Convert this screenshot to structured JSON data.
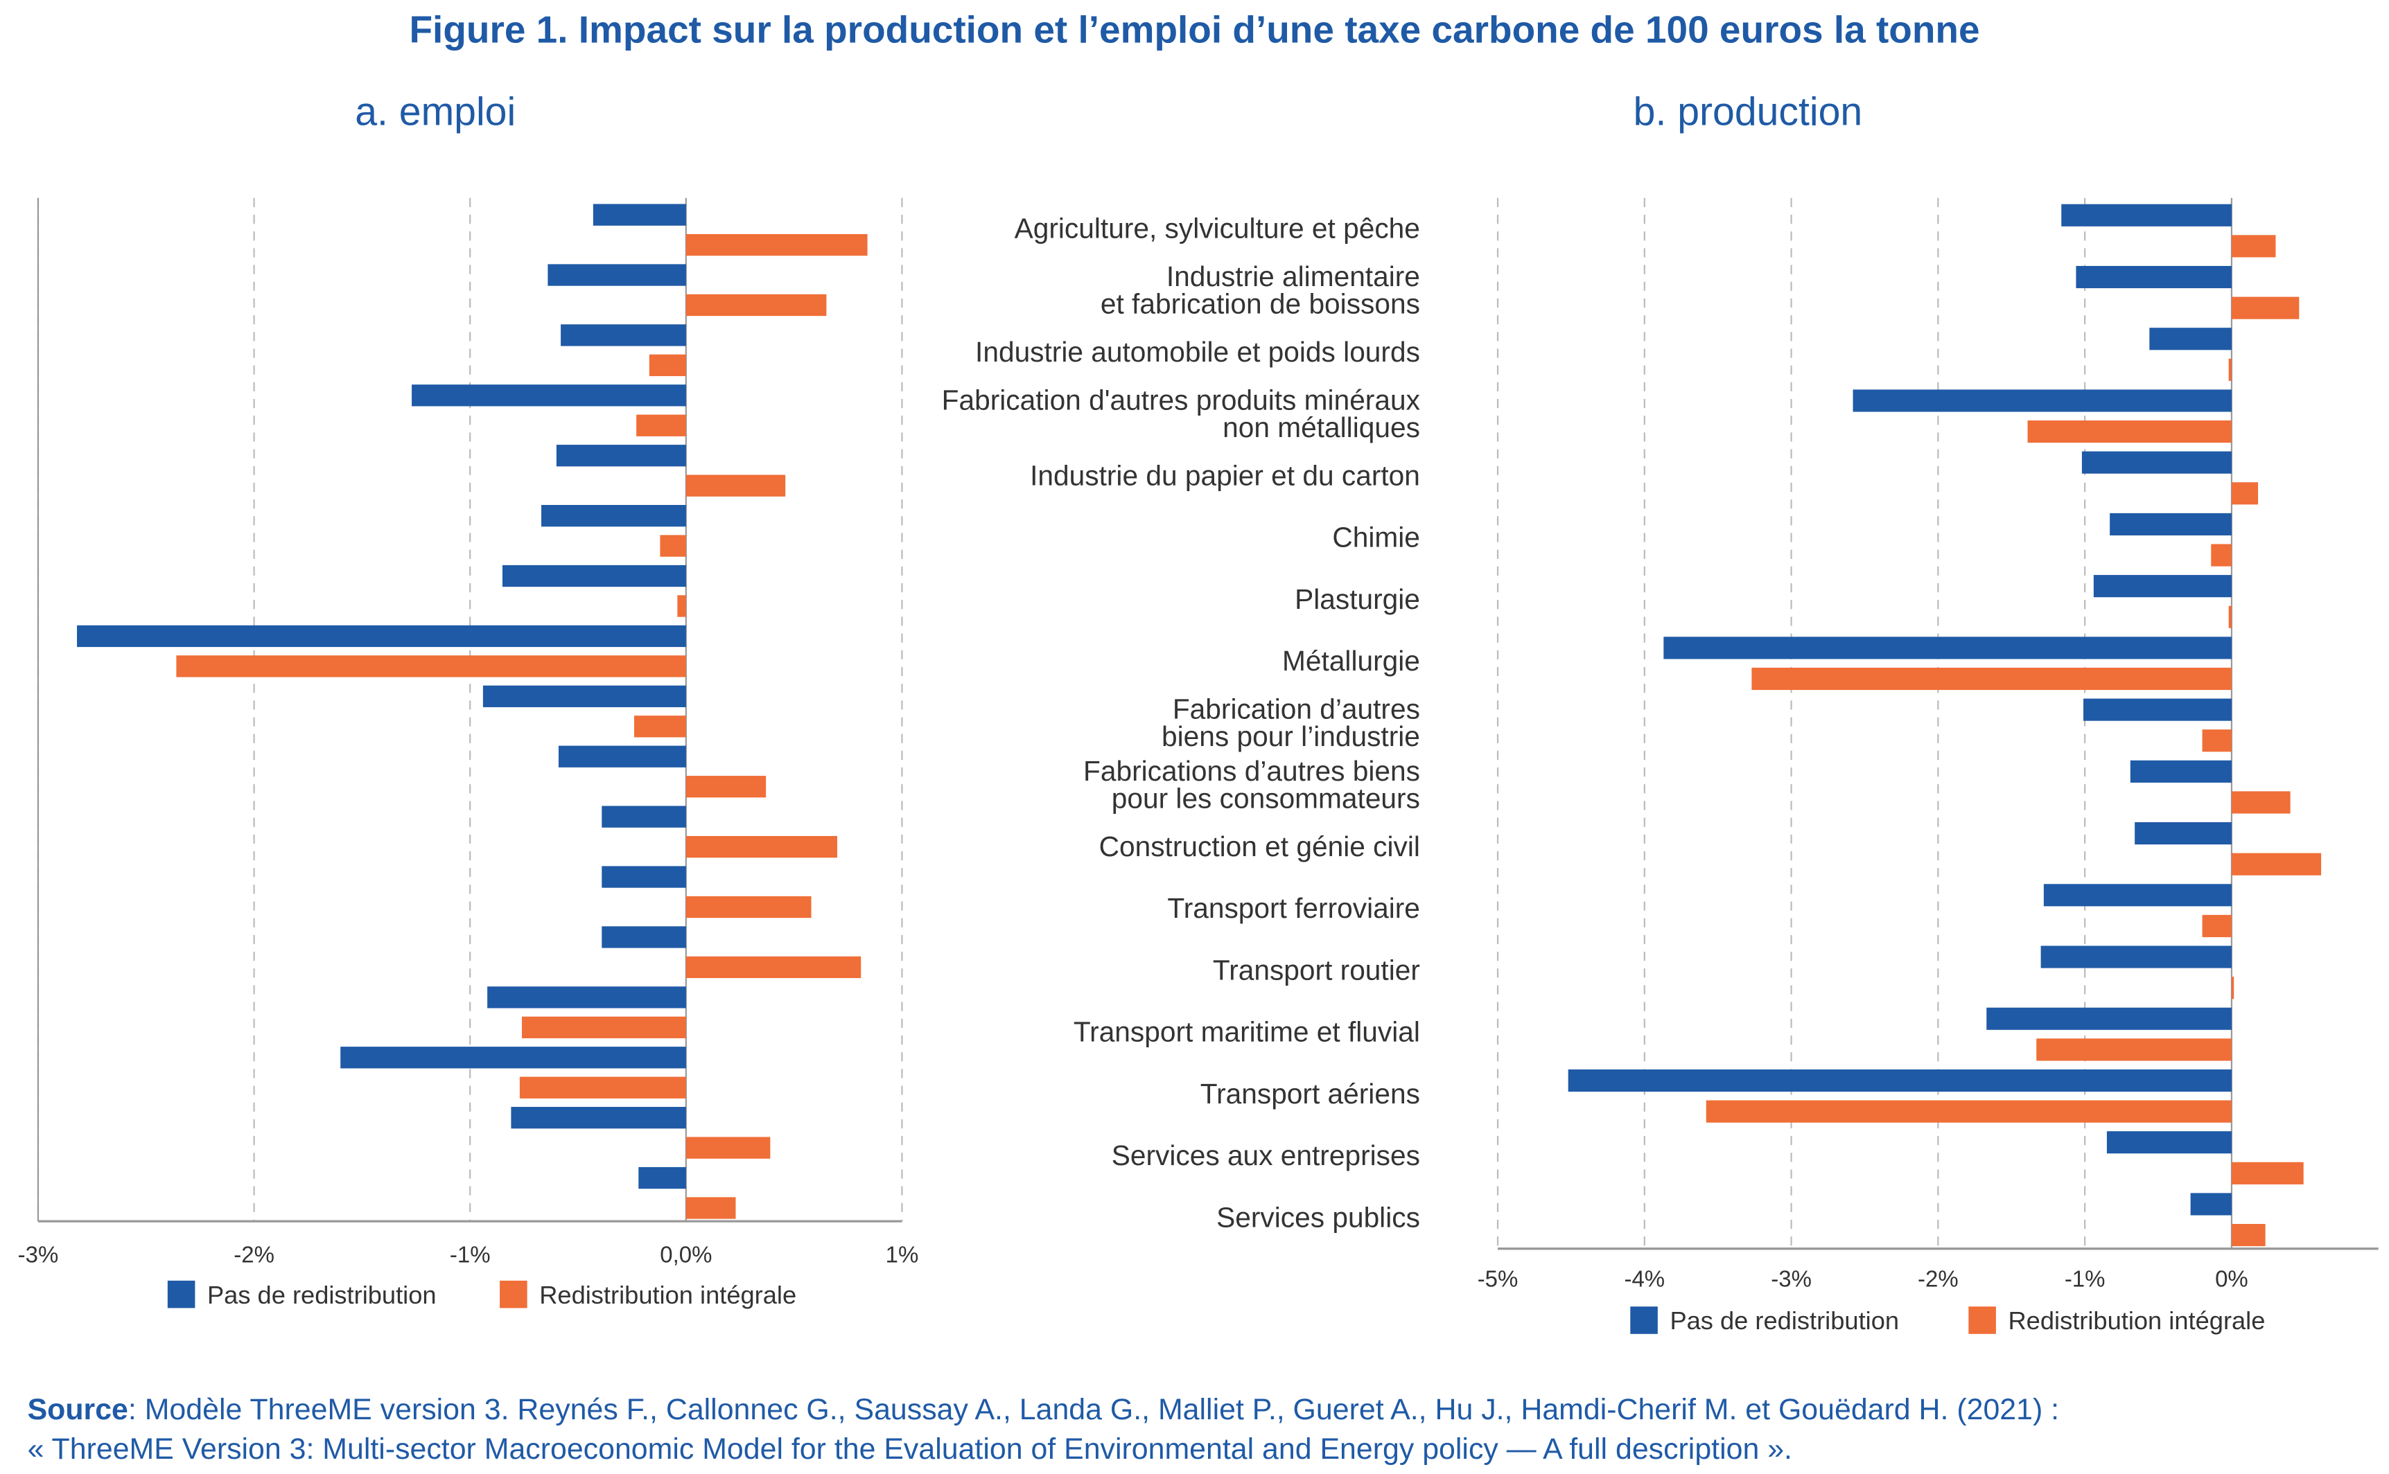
{
  "title": "Figure 1. Impact sur la production et l’emploi d’une taxe carbone de 100 euros la tonne",
  "source": {
    "label": "Source",
    "line1": ": Modèle ThreeME version 3. Reynés F., Callonnec G., Saussay A., Landa G., Malliet P., Gueret A., Hu J., Hamdi-Cherif M. et Gouëdard H. (2021) :",
    "line2": "« ThreeME Version 3: Multi-sector Macroeconomic Model for the Evaluation of Environmental and Energy policy — A full description »."
  },
  "colors": {
    "title": "#1f5aa6",
    "pas_de_redistribution": "#1f5aa6",
    "redistribution_integrale": "#f06e37"
  },
  "chart_data": [
    {
      "type": "bar",
      "orientation": "horizontal",
      "title": "a. emploi",
      "categories": [
        [
          "Agriculture, sylviculture et pêche"
        ],
        [
          "Industrie alimentaire",
          "et fabrication de boissons"
        ],
        [
          "Industrie automobile et poids lourds"
        ],
        [
          "Fabrication d'autres produits minéraux",
          "non métalliques"
        ],
        [
          "Industrie du papier et du carton"
        ],
        [
          "Chimie"
        ],
        [
          "Plasturgie"
        ],
        [
          "Métallurgie"
        ],
        [
          "Fabrication d’autres",
          "biens pour l’industrie"
        ],
        [
          "Fabrications d’autres biens",
          "pour les consommateurs"
        ],
        [
          "Construction et génie civil"
        ],
        [
          "Transport ferroviaire"
        ],
        [
          "Transport routier"
        ],
        [
          "Transport maritime et fluvial"
        ],
        [
          "Transport aériens"
        ],
        [
          "Services aux entreprises"
        ],
        [
          "Services publics"
        ]
      ],
      "series": [
        {
          "name": "Pas de redistribution",
          "values": [
            -0.43,
            -0.64,
            -0.58,
            -1.27,
            -0.6,
            -0.67,
            -0.85,
            -2.82,
            -0.94,
            -0.59,
            -0.39,
            -0.39,
            -0.39,
            -0.92,
            -1.6,
            -0.81,
            -0.22
          ]
        },
        {
          "name": "Redistribution intégrale",
          "values": [
            0.84,
            0.65,
            -0.17,
            -0.23,
            0.46,
            -0.12,
            -0.04,
            -2.36,
            -0.24,
            0.37,
            0.7,
            0.58,
            0.81,
            -0.76,
            -0.77,
            0.39,
            0.23
          ]
        }
      ],
      "xlim": [
        -3,
        1
      ],
      "ticks": [
        "-3%",
        "-2%",
        "-1%",
        "0,0%",
        "1%"
      ],
      "tick_values": [
        -3,
        -2,
        -1,
        0,
        1
      ],
      "grid": true,
      "legend": "bottom"
    },
    {
      "type": "bar",
      "orientation": "horizontal",
      "title": "b. production",
      "series": [
        {
          "name": "Pas de redistribution",
          "values": [
            -1.16,
            -1.06,
            -0.56,
            -2.58,
            -1.02,
            -0.83,
            -0.94,
            -3.87,
            -1.01,
            -0.69,
            -0.66,
            -1.28,
            -1.3,
            -1.67,
            -4.52,
            -0.85,
            -0.28
          ]
        },
        {
          "name": "Redistribution intégrale",
          "values": [
            0.3,
            0.46,
            -0.02,
            -1.39,
            0.18,
            -0.14,
            -0.02,
            -3.27,
            -0.2,
            0.4,
            0.61,
            -0.2,
            0.01,
            -1.33,
            -3.58,
            0.49,
            0.23
          ]
        }
      ],
      "xlim": [
        -5,
        1
      ],
      "ticks": [
        "-5%",
        "-4%",
        "-3%",
        "-2%",
        "-1%",
        "0%"
      ],
      "tick_values": [
        -5,
        -4,
        -3,
        -2,
        -1,
        0
      ],
      "grid": true,
      "legend": "bottom"
    }
  ]
}
